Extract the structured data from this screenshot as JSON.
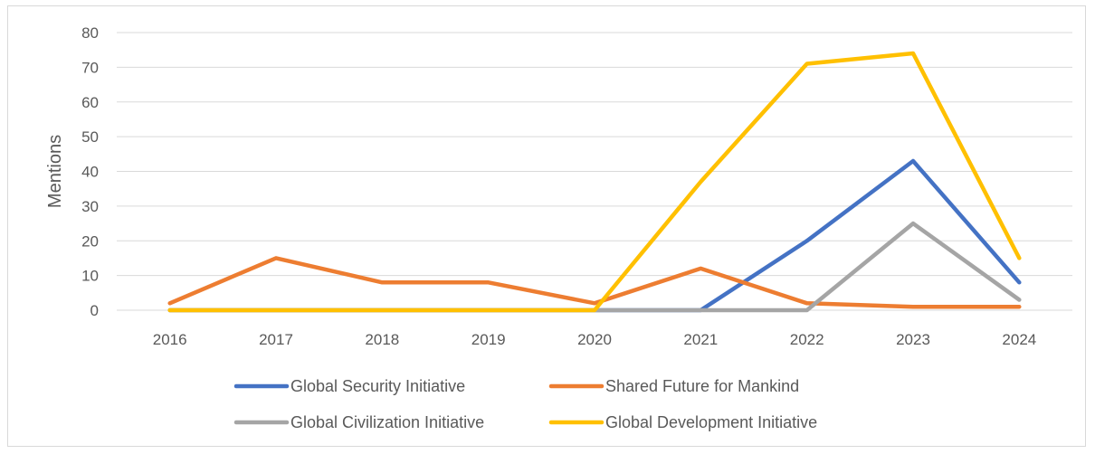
{
  "chart_data": {
    "type": "line",
    "title": "",
    "xlabel": "",
    "ylabel": "Mentions",
    "x": [
      "2016",
      "2017",
      "2018",
      "2019",
      "2020",
      "2021",
      "2022",
      "2023",
      "2024"
    ],
    "ylim": [
      0,
      80
    ],
    "yticks": [
      0,
      10,
      20,
      30,
      40,
      50,
      60,
      70,
      80
    ],
    "grid": true,
    "legend_position": "bottom",
    "series": [
      {
        "name": "Global Security Initiative",
        "color": "#4472c4",
        "values": [
          0,
          0,
          0,
          0,
          0,
          0,
          20,
          43,
          8
        ]
      },
      {
        "name": "Shared Future for Mankind",
        "color": "#ed7d31",
        "values": [
          2,
          15,
          8,
          8,
          2,
          12,
          2,
          1,
          1
        ]
      },
      {
        "name": "Global Civilization Initiative",
        "color": "#a5a5a5",
        "values": [
          0,
          0,
          0,
          0,
          0,
          0,
          0,
          25,
          3
        ]
      },
      {
        "name": "Global Development Initiative",
        "color": "#ffc000",
        "values": [
          0,
          0,
          0,
          0,
          0,
          37,
          71,
          74,
          15
        ]
      }
    ]
  }
}
